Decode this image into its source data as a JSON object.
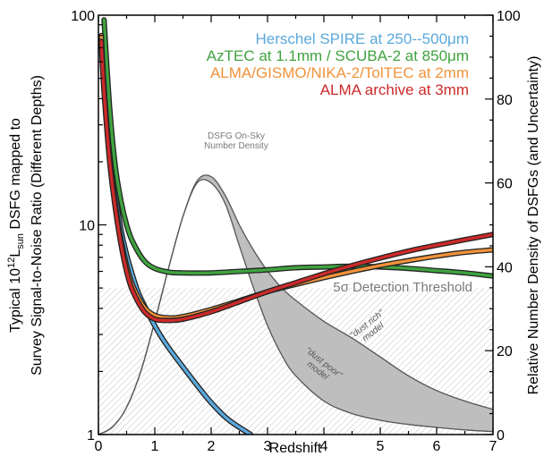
{
  "chart_data": {
    "type": "line",
    "xlabel": "Redshift",
    "ylabel_left": "Typical 10¹²Lₛᵤₙ DSFG mapped to Survey Signal-to-Noise Ratio (Different Depths)",
    "ylabel_left_parts": {
      "line1_pre": "Typical 10",
      "line1_sup": "12",
      "line1_mid": "L",
      "line1_sub": "sun",
      "line1_post": " DSFG mapped to",
      "line2": "Survey Signal-to-Noise Ratio (Different Depths)"
    },
    "ylabel_right": "Relative Number Density of DSFGs (and Uncertainty)",
    "xlim": [
      0,
      7
    ],
    "ylim_left": [
      1,
      100
    ],
    "ylim_left_scale": "log",
    "ylim_right": [
      0,
      100
    ],
    "x_ticks": [
      "0",
      "1",
      "2",
      "3",
      "4",
      "5",
      "6",
      "7"
    ],
    "y_left_ticks": [
      "1",
      "10",
      "100"
    ],
    "y_right_ticks": [
      "0",
      "20",
      "40",
      "60",
      "80",
      "100"
    ],
    "threshold": {
      "label": "5σ Detection Threshold",
      "value": 5
    },
    "density": {
      "label_line1": "DSFG On-Sky",
      "label_line2": "Number Density",
      "upper_label_line1": "\"dust rich\"",
      "upper_label_line2": "model",
      "lower_label_line1": "\"dust poor\"",
      "lower_label_line2": "model",
      "color": "#bebebe",
      "upper": {
        "x": [
          0,
          0.25,
          0.5,
          0.75,
          1.0,
          1.25,
          1.5,
          1.75,
          2.0,
          2.25,
          2.5,
          2.75,
          3.0,
          3.25,
          3.5,
          4.0,
          4.5,
          5.0,
          5.5,
          6.0,
          6.5,
          7.0
        ],
        "y": [
          0,
          1.8,
          6.5,
          15,
          27,
          40,
          52,
          60.5,
          61.5,
          57,
          50,
          44,
          39,
          35,
          32,
          27,
          23,
          18.5,
          14,
          10.5,
          8,
          6
        ]
      },
      "lower": {
        "x": [
          0,
          0.25,
          0.5,
          0.75,
          1.0,
          1.25,
          1.5,
          1.75,
          2.0,
          2.25,
          2.5,
          2.75,
          3.0,
          3.25,
          3.5,
          4.0,
          4.5,
          5.0,
          5.5,
          6.0,
          6.5,
          7.0
        ],
        "y": [
          0,
          1.8,
          6.5,
          15,
          27,
          40,
          52,
          60,
          60,
          55,
          45,
          35,
          26,
          19,
          14,
          8,
          5,
          3.4,
          2.4,
          1.7,
          1.1,
          0.7
        ]
      }
    },
    "series": [
      {
        "name": "Herschel SPIRE at 250--500",
        "unit": "μm",
        "color": "#5aa8dc",
        "x": [
          0.1,
          0.2,
          0.3,
          0.4,
          0.5,
          0.6,
          0.7,
          0.8,
          1.0,
          1.2,
          1.5,
          1.8,
          2.0,
          2.3,
          2.7
        ],
        "y": [
          55,
          24,
          14,
          9.5,
          7.2,
          5.8,
          4.8,
          4.2,
          3.3,
          2.7,
          2.1,
          1.65,
          1.42,
          1.18,
          1.0
        ]
      },
      {
        "name": "AzTEC at 1.1mm / SCUBA-2 at 850",
        "unit": "μm",
        "color": "#3fa33f",
        "x": [
          0.1,
          0.2,
          0.3,
          0.4,
          0.5,
          0.6,
          0.8,
          1.0,
          1.25,
          1.5,
          2.0,
          2.5,
          3.0,
          3.5,
          4.0,
          4.5,
          5.0,
          5.5,
          6.0,
          6.5,
          7.0
        ],
        "y": [
          95,
          36,
          19,
          13,
          10,
          8.4,
          6.8,
          6.2,
          5.95,
          5.9,
          5.9,
          6.0,
          6.1,
          6.25,
          6.3,
          6.35,
          6.3,
          6.2,
          6.05,
          5.9,
          5.7
        ]
      },
      {
        "name": "ALMA/GISMO/NIKA-2/TolTEC at 2mm",
        "unit": "",
        "color": "#f0923a",
        "x": [
          0.05,
          0.1,
          0.2,
          0.3,
          0.4,
          0.5,
          0.6,
          0.8,
          1.0,
          1.25,
          1.5,
          2.0,
          2.5,
          3.0,
          3.5,
          4.0,
          4.5,
          5.0,
          5.5,
          6.0,
          6.5,
          7.0
        ],
        "y": [
          80,
          45,
          21,
          12.5,
          8.5,
          6.4,
          5.2,
          4.1,
          3.7,
          3.6,
          3.65,
          3.95,
          4.35,
          4.8,
          5.2,
          5.6,
          6.0,
          6.4,
          6.75,
          7.1,
          7.4,
          7.6
        ]
      },
      {
        "name": "ALMA archive at 3mm",
        "unit": "",
        "color": "#cc2a2a",
        "x": [
          0.05,
          0.1,
          0.2,
          0.3,
          0.4,
          0.5,
          0.6,
          0.8,
          1.0,
          1.25,
          1.5,
          2.0,
          2.5,
          3.0,
          3.5,
          4.0,
          4.5,
          5.0,
          5.5,
          6.0,
          6.5,
          7.0
        ],
        "y": [
          75,
          43,
          20,
          12,
          8.1,
          6.0,
          4.9,
          3.9,
          3.55,
          3.5,
          3.55,
          3.85,
          4.3,
          4.8,
          5.3,
          5.85,
          6.4,
          6.95,
          7.5,
          8.0,
          8.5,
          9.0
        ]
      }
    ]
  }
}
